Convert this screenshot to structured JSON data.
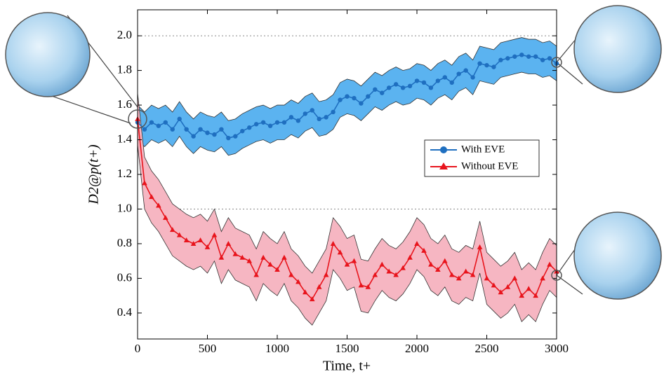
{
  "chart_data": {
    "type": "line",
    "xlabel": "Time, t+",
    "ylabel": "D2@p(t+)",
    "xlim": [
      0,
      3000
    ],
    "ylim": [
      0.25,
      2.15
    ],
    "xticks": [
      0,
      500,
      1000,
      1500,
      2000,
      2500,
      3000
    ],
    "yticks": [
      0.4,
      0.6,
      0.8,
      {
        "value": 1,
        "label": "1.0"
      },
      1.2,
      1.4,
      1.6,
      1.8,
      {
        "value": 2,
        "label": "2.0"
      }
    ],
    "reference_lines": [
      1,
      2
    ],
    "legend": "center right",
    "x": [
      0,
      50,
      100,
      150,
      200,
      250,
      300,
      350,
      400,
      450,
      500,
      550,
      600,
      650,
      700,
      750,
      800,
      850,
      900,
      950,
      1000,
      1050,
      1100,
      1150,
      1200,
      1250,
      1300,
      1350,
      1400,
      1450,
      1500,
      1550,
      1600,
      1650,
      1700,
      1750,
      1800,
      1850,
      1900,
      1950,
      2000,
      2050,
      2100,
      2150,
      2200,
      2250,
      2300,
      2350,
      2400,
      2450,
      2500,
      2550,
      2600,
      2650,
      2700,
      2750,
      2800,
      2850,
      2900,
      2950,
      3000
    ],
    "series": [
      {
        "name": "With EVE",
        "color": "#1f6fc0",
        "band_color": "#5bb3f0",
        "marker": "circle",
        "values": [
          1.5,
          1.46,
          1.5,
          1.48,
          1.5,
          1.46,
          1.52,
          1.46,
          1.42,
          1.46,
          1.44,
          1.43,
          1.46,
          1.41,
          1.42,
          1.45,
          1.47,
          1.49,
          1.5,
          1.48,
          1.5,
          1.5,
          1.53,
          1.51,
          1.55,
          1.57,
          1.52,
          1.53,
          1.56,
          1.63,
          1.65,
          1.64,
          1.61,
          1.65,
          1.69,
          1.67,
          1.7,
          1.72,
          1.7,
          1.71,
          1.74,
          1.73,
          1.7,
          1.74,
          1.76,
          1.73,
          1.78,
          1.8,
          1.76,
          1.84,
          1.83,
          1.82,
          1.86,
          1.87,
          1.88,
          1.89,
          1.88,
          1.88,
          1.86,
          1.87,
          1.84
        ],
        "upper": [
          1.6,
          1.56,
          1.6,
          1.58,
          1.6,
          1.56,
          1.62,
          1.56,
          1.52,
          1.56,
          1.54,
          1.53,
          1.56,
          1.51,
          1.52,
          1.55,
          1.57,
          1.59,
          1.6,
          1.58,
          1.6,
          1.6,
          1.63,
          1.61,
          1.65,
          1.67,
          1.62,
          1.63,
          1.66,
          1.73,
          1.75,
          1.74,
          1.71,
          1.75,
          1.79,
          1.77,
          1.8,
          1.82,
          1.8,
          1.81,
          1.84,
          1.83,
          1.8,
          1.84,
          1.86,
          1.83,
          1.88,
          1.9,
          1.86,
          1.94,
          1.93,
          1.92,
          1.96,
          1.97,
          1.98,
          1.99,
          1.98,
          1.98,
          1.96,
          1.97,
          1.94
        ],
        "lower": [
          1.4,
          1.36,
          1.4,
          1.38,
          1.4,
          1.36,
          1.42,
          1.36,
          1.32,
          1.36,
          1.34,
          1.33,
          1.36,
          1.31,
          1.32,
          1.35,
          1.37,
          1.39,
          1.4,
          1.38,
          1.4,
          1.4,
          1.43,
          1.41,
          1.45,
          1.47,
          1.42,
          1.43,
          1.46,
          1.53,
          1.55,
          1.54,
          1.51,
          1.55,
          1.59,
          1.57,
          1.6,
          1.62,
          1.6,
          1.61,
          1.64,
          1.63,
          1.6,
          1.64,
          1.66,
          1.63,
          1.68,
          1.7,
          1.66,
          1.74,
          1.73,
          1.72,
          1.76,
          1.77,
          1.78,
          1.79,
          1.78,
          1.78,
          1.76,
          1.77,
          1.74
        ]
      },
      {
        "name": "Without EVE",
        "color": "#e8141c",
        "band_color": "#f6b6c2",
        "marker": "triangle",
        "values": [
          1.52,
          1.15,
          1.07,
          1.02,
          0.95,
          0.88,
          0.85,
          0.82,
          0.8,
          0.82,
          0.78,
          0.85,
          0.72,
          0.8,
          0.74,
          0.72,
          0.7,
          0.62,
          0.72,
          0.68,
          0.65,
          0.72,
          0.62,
          0.58,
          0.52,
          0.48,
          0.55,
          0.62,
          0.8,
          0.75,
          0.68,
          0.7,
          0.56,
          0.55,
          0.62,
          0.68,
          0.64,
          0.62,
          0.66,
          0.72,
          0.8,
          0.76,
          0.68,
          0.65,
          0.7,
          0.62,
          0.6,
          0.64,
          0.62,
          0.78,
          0.6,
          0.56,
          0.52,
          0.55,
          0.6,
          0.5,
          0.54,
          0.5,
          0.6,
          0.68,
          0.64
        ],
        "upper": [
          1.67,
          1.3,
          1.22,
          1.17,
          1.1,
          1.03,
          1.0,
          0.97,
          0.95,
          0.97,
          0.93,
          1.0,
          0.87,
          0.95,
          0.89,
          0.87,
          0.85,
          0.77,
          0.87,
          0.83,
          0.8,
          0.87,
          0.77,
          0.73,
          0.67,
          0.63,
          0.7,
          0.77,
          0.95,
          0.9,
          0.83,
          0.85,
          0.71,
          0.7,
          0.77,
          0.83,
          0.79,
          0.77,
          0.81,
          0.87,
          0.95,
          0.91,
          0.83,
          0.8,
          0.85,
          0.77,
          0.75,
          0.79,
          0.77,
          0.93,
          0.75,
          0.71,
          0.67,
          0.7,
          0.75,
          0.65,
          0.69,
          0.65,
          0.75,
          0.83,
          0.79
        ],
        "lower": [
          1.37,
          1.0,
          0.92,
          0.87,
          0.8,
          0.73,
          0.7,
          0.67,
          0.65,
          0.67,
          0.63,
          0.7,
          0.57,
          0.65,
          0.59,
          0.57,
          0.55,
          0.47,
          0.57,
          0.53,
          0.5,
          0.57,
          0.47,
          0.43,
          0.37,
          0.33,
          0.4,
          0.47,
          0.65,
          0.6,
          0.53,
          0.55,
          0.41,
          0.4,
          0.47,
          0.53,
          0.49,
          0.47,
          0.51,
          0.57,
          0.65,
          0.61,
          0.53,
          0.5,
          0.55,
          0.47,
          0.45,
          0.49,
          0.47,
          0.63,
          0.45,
          0.41,
          0.37,
          0.4,
          0.45,
          0.35,
          0.39,
          0.35,
          0.45,
          0.53,
          0.49
        ]
      }
    ]
  }
}
